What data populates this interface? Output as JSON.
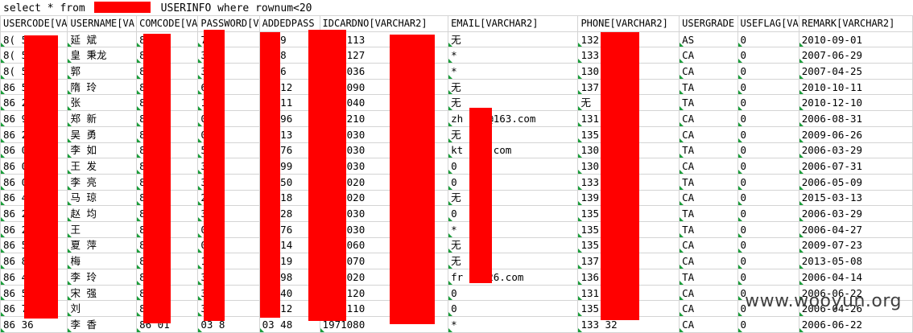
{
  "query": "select * from            USERINFO where rownum<20",
  "columns": [
    "USERCODE[VA",
    "USERNAME[VA",
    "COMCODE[VA",
    "PASSWORD[V",
    "ADDEDPASS",
    "IDCARDNO[VARCHAR2]",
    "EMAIL[VARCHAR2]",
    "PHONE[VARCHAR2]",
    "USERGRADE",
    "USEFLAG[VA",
    "REMARK[VARCHAR2]"
  ],
  "rows": [
    [
      "8( 50",
      "延 斌",
      "86 05",
      "79 9",
      "7 19",
      "1965113",
      "无",
      "132 55",
      "AS",
      "0",
      "2010-09-01"
    ],
    [
      "8( 52",
      "皇 秉龙",
      "86 01",
      "33 8",
      "3 58",
      "1958127",
      "*",
      "133 56",
      "CA",
      "0",
      "2007-06-29"
    ],
    [
      "8( 53",
      "郭",
      "86 01",
      "33 6",
      "3 76",
      "1964036",
      "*",
      "130 36",
      "CA",
      "0",
      "2007-04-25"
    ],
    [
      "86 52",
      "隋 玲",
      "86 08",
      "69 2",
      "69 12",
      "1969090",
      "无",
      "137 72",
      "TA",
      "0",
      "2010-10-11"
    ],
    [
      "86 25",
      "张",
      "86 05",
      "15 1",
      "15 11",
      "1978040",
      "无",
      "无",
      "TA",
      "0",
      "2010-12-10"
    ],
    [
      "86 99",
      "郑 新",
      "86 01",
      "03 6",
      "03 96",
      "6608210",
      "zh xin@163.com",
      "131 79",
      "CA",
      "0",
      "2006-08-31"
    ],
    [
      "86 20",
      "吴 勇",
      "86 01",
      "08 3",
      "08 13",
      "6210030",
      "无",
      "135 14",
      "CA",
      "0",
      "2009-06-26"
    ],
    [
      "86 01",
      "李 如",
      "86 01",
      "53 6",
      "53 76",
      "5401030",
      "kt 163.com",
      "130 56",
      "TA",
      "0",
      "2006-03-29"
    ],
    [
      "86 03",
      "王 发",
      "86 01",
      "38 9",
      "38 99",
      "1981030",
      "0",
      "130 78",
      "CA",
      "0",
      "2006-07-31"
    ],
    [
      "86 06",
      "李 亮",
      "86 01",
      "30 0",
      "30 50",
      "1971020",
      "0",
      "133 12",
      "TA",
      "0",
      "2006-05-09"
    ],
    [
      "86 47",
      "马 琼",
      "86 01",
      "28 8",
      "28 18",
      "1961020",
      "无",
      "139 98",
      "CA",
      "0",
      "2015-03-13"
    ],
    [
      "86 20",
      "赵 均",
      "86 01",
      "37 8",
      "37 28",
      "1955030",
      "0",
      "135 55",
      "TA",
      "0",
      "2006-03-29"
    ],
    [
      "86 20",
      "王",
      "86 01",
      "04 6",
      "04 76",
      "8105030",
      "*",
      "135 77",
      "TA",
      "0",
      "2006-04-27"
    ],
    [
      "86 53",
      "夏 萍",
      "86 03",
      "08 4",
      "08 14",
      "1971060",
      "无",
      "135 56",
      "CA",
      "0",
      "2009-07-23"
    ],
    [
      "86 88",
      "梅",
      "86 01",
      "10 9",
      "10 19",
      "1969070",
      "无",
      "137 18",
      "CA",
      "0",
      "2013-05-08"
    ],
    [
      "86 49",
      "李 玲",
      "86 01",
      "38 8",
      "38 98",
      "1979020",
      "fr e@126.com",
      "136 89",
      "TA",
      "0",
      "2006-04-14"
    ],
    [
      "86 55",
      "宋 强",
      "86 01",
      "38 0",
      "38 40",
      "7811120",
      "0",
      "131 06",
      "CA",
      "0",
      "2006-06-22"
    ],
    [
      "86 79",
      "刘",
      "86 01",
      "38 2",
      "38 12",
      "1981110",
      "0",
      "135 07",
      "CA",
      "0",
      "2006-04-26"
    ],
    [
      "86 36",
      "李 香",
      "86 01",
      "03 8",
      "03 48",
      "1971080",
      "*",
      "133 32",
      "CA",
      "0",
      "2006-06-22"
    ]
  ],
  "watermark": "www.wooyun.org",
  "colors": {
    "redaction": "#ff0000",
    "cell_marker": "#1a9e3a",
    "grid_line": "#d4d4d4"
  }
}
